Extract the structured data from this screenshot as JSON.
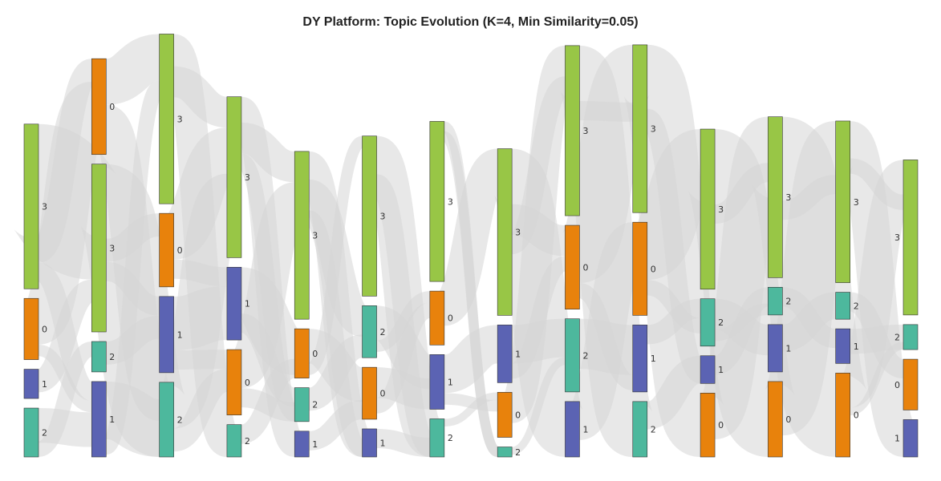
{
  "title": "DY Platform: Topic Evolution (K=4, Min Similarity=0.05)",
  "colors": {
    "0": "#e8820c",
    "1": "#5b63b3",
    "2": "#4db89d",
    "3": "#98c646",
    "link": "#d6d6d6",
    "node_stroke": "#333333"
  },
  "columns": [
    {
      "nodes": [
        {
          "label": "3",
          "topic": 3,
          "share": 0.428
        },
        {
          "label": "0",
          "topic": 0,
          "share": 0.159
        },
        {
          "label": "1",
          "topic": 1,
          "share": 0.076
        },
        {
          "label": "2",
          "topic": 2,
          "share": 0.127
        }
      ]
    },
    {
      "nodes": [
        {
          "label": "0",
          "topic": 0,
          "share": 0.249
        },
        {
          "label": "3",
          "topic": 3,
          "share": 0.436
        },
        {
          "label": "2",
          "topic": 2,
          "share": 0.079
        },
        {
          "label": "1",
          "topic": 1,
          "share": 0.196
        }
      ]
    },
    {
      "nodes": [
        {
          "label": "3",
          "topic": 3,
          "share": 0.441
        },
        {
          "label": "0",
          "topic": 0,
          "share": 0.191
        },
        {
          "label": "1",
          "topic": 1,
          "share": 0.198
        },
        {
          "label": "2",
          "topic": 2,
          "share": 0.194
        }
      ]
    },
    {
      "nodes": [
        {
          "label": "3",
          "topic": 3,
          "share": 0.418
        },
        {
          "label": "1",
          "topic": 1,
          "share": 0.189
        },
        {
          "label": "0",
          "topic": 0,
          "share": 0.17
        },
        {
          "label": "2",
          "topic": 2,
          "share": 0.084
        }
      ]
    },
    {
      "nodes": [
        {
          "label": "3",
          "topic": 3,
          "share": 0.436
        },
        {
          "label": "0",
          "topic": 0,
          "share": 0.128
        },
        {
          "label": "2",
          "topic": 2,
          "share": 0.088
        },
        {
          "label": "1",
          "topic": 1,
          "share": 0.067
        }
      ]
    },
    {
      "nodes": [
        {
          "label": "3",
          "topic": 3,
          "share": 0.416
        },
        {
          "label": "2",
          "topic": 2,
          "share": 0.135
        },
        {
          "label": "0",
          "topic": 0,
          "share": 0.135
        },
        {
          "label": "1",
          "topic": 1,
          "share": 0.073
        }
      ]
    },
    {
      "nodes": [
        {
          "label": "3",
          "topic": 3,
          "share": 0.416
        },
        {
          "label": "0",
          "topic": 0,
          "share": 0.14
        },
        {
          "label": "1",
          "topic": 1,
          "share": 0.142
        },
        {
          "label": "2",
          "topic": 2,
          "share": 0.099
        }
      ]
    },
    {
      "nodes": [
        {
          "label": "3",
          "topic": 3,
          "share": 0.433
        },
        {
          "label": "1",
          "topic": 1,
          "share": 0.15
        },
        {
          "label": "0",
          "topic": 0,
          "share": 0.117
        },
        {
          "label": "2",
          "topic": 2,
          "share": 0.026
        }
      ]
    },
    {
      "nodes": [
        {
          "label": "3",
          "topic": 3,
          "share": 0.442
        },
        {
          "label": "0",
          "topic": 0,
          "share": 0.218
        },
        {
          "label": "2",
          "topic": 2,
          "share": 0.19
        },
        {
          "label": "1",
          "topic": 1,
          "share": 0.144
        }
      ]
    },
    {
      "nodes": [
        {
          "label": "3",
          "topic": 3,
          "share": 0.436
        },
        {
          "label": "0",
          "topic": 0,
          "share": 0.242
        },
        {
          "label": "1",
          "topic": 1,
          "share": 0.174
        },
        {
          "label": "2",
          "topic": 2,
          "share": 0.144
        }
      ]
    },
    {
      "nodes": [
        {
          "label": "3",
          "topic": 3,
          "share": 0.416
        },
        {
          "label": "2",
          "topic": 2,
          "share": 0.123
        },
        {
          "label": "1",
          "topic": 1,
          "share": 0.072
        },
        {
          "label": "0",
          "topic": 0,
          "share": 0.166
        }
      ]
    },
    {
      "nodes": [
        {
          "label": "3",
          "topic": 3,
          "share": 0.418
        },
        {
          "label": "2",
          "topic": 2,
          "share": 0.072
        },
        {
          "label": "1",
          "topic": 1,
          "share": 0.123
        },
        {
          "label": "0",
          "topic": 0,
          "share": 0.196
        }
      ]
    },
    {
      "nodes": [
        {
          "label": "3",
          "topic": 3,
          "share": 0.42
        },
        {
          "label": "2",
          "topic": 2,
          "share": 0.07
        },
        {
          "label": "1",
          "topic": 1,
          "share": 0.09
        },
        {
          "label": "0",
          "topic": 0,
          "share": 0.218
        }
      ]
    },
    {
      "nodes": [
        {
          "label": "3",
          "topic": 3,
          "share": 0.403
        },
        {
          "label": "2",
          "topic": 2,
          "share": 0.065
        },
        {
          "label": "0",
          "topic": 0,
          "share": 0.132
        },
        {
          "label": "1",
          "topic": 1,
          "share": 0.097
        }
      ]
    }
  ],
  "links": [
    [
      0,
      0,
      1,
      1,
      0.3
    ],
    [
      0,
      0,
      2,
      0,
      0.06
    ],
    [
      0,
      0,
      0,
      3,
      0.05
    ],
    [
      0,
      1,
      1,
      0,
      0.12
    ],
    [
      0,
      1,
      2,
      3,
      0.03
    ],
    [
      0,
      2,
      3,
      1,
      0.06
    ],
    [
      0,
      3,
      1,
      3,
      0.09
    ],
    [
      0,
      3,
      3,
      2,
      0.04
    ],
    [
      1,
      0,
      0,
      0,
      0.12
    ],
    [
      1,
      0,
      1,
      3,
      0.1
    ],
    [
      1,
      1,
      0,
      3,
      0.3
    ],
    [
      1,
      1,
      2,
      1,
      0.06
    ],
    [
      1,
      1,
      3,
      2,
      0.05
    ],
    [
      1,
      2,
      2,
      2,
      0.06
    ],
    [
      1,
      3,
      3,
      3,
      0.15
    ],
    [
      1,
      3,
      1,
      0,
      0.04
    ],
    [
      2,
      0,
      0,
      3,
      0.3
    ],
    [
      2,
      0,
      2,
      0,
      0.08
    ],
    [
      2,
      1,
      1,
      0,
      0.12
    ],
    [
      2,
      1,
      0,
      1,
      0.05
    ],
    [
      2,
      2,
      3,
      1,
      0.14
    ],
    [
      2,
      2,
      1,
      2,
      0.05
    ],
    [
      2,
      3,
      3,
      0,
      0.12
    ],
    [
      2,
      3,
      2,
      2,
      0.06
    ],
    [
      3,
      0,
      0,
      3,
      0.3
    ],
    [
      3,
      0,
      1,
      0,
      0.08
    ],
    [
      3,
      1,
      3,
      1,
      0.12
    ],
    [
      3,
      1,
      0,
      2,
      0.05
    ],
    [
      3,
      2,
      2,
      0,
      0.1
    ],
    [
      3,
      2,
      3,
      2,
      0.05
    ],
    [
      3,
      3,
      1,
      1,
      0.05
    ],
    [
      3,
      0,
      2,
      2,
      0.04
    ],
    [
      4,
      0,
      0,
      3,
      0.3
    ],
    [
      4,
      0,
      1,
      1,
      0.08
    ],
    [
      4,
      1,
      2,
      2,
      0.09
    ],
    [
      4,
      1,
      0,
      0,
      0.03
    ],
    [
      4,
      2,
      1,
      1,
      0.06
    ],
    [
      4,
      3,
      3,
      2,
      0.05
    ],
    [
      4,
      0,
      2,
      3,
      0.04
    ],
    [
      5,
      0,
      0,
      3,
      0.3
    ],
    [
      5,
      1,
      1,
      2,
      0.09
    ],
    [
      5,
      1,
      3,
      1,
      0.03
    ],
    [
      5,
      2,
      0,
      2,
      0.08
    ],
    [
      5,
      2,
      2,
      1,
      0.04
    ],
    [
      5,
      3,
      3,
      3,
      0.05
    ],
    [
      5,
      0,
      1,
      3,
      0.05
    ],
    [
      6,
      0,
      0,
      3,
      0.3
    ],
    [
      6,
      1,
      2,
      0,
      0.09
    ],
    [
      6,
      2,
      1,
      1,
      0.1
    ],
    [
      6,
      3,
      3,
      2,
      0.02
    ],
    [
      6,
      0,
      2,
      3,
      0.05
    ],
    [
      6,
      2,
      3,
      2,
      0.03
    ],
    [
      7,
      0,
      0,
      3,
      0.3
    ],
    [
      7,
      0,
      1,
      1,
      0.08
    ],
    [
      7,
      1,
      2,
      2,
      0.1
    ],
    [
      7,
      1,
      3,
      1,
      0.04
    ],
    [
      7,
      2,
      1,
      0,
      0.08
    ],
    [
      7,
      3,
      3,
      2,
      0.02
    ],
    [
      7,
      0,
      2,
      0,
      0.05
    ],
    [
      8,
      0,
      0,
      3,
      0.3
    ],
    [
      8,
      1,
      1,
      0,
      0.15
    ],
    [
      8,
      2,
      3,
      2,
      0.13
    ],
    [
      8,
      3,
      2,
      1,
      0.1
    ],
    [
      8,
      0,
      1,
      0,
      0.05
    ],
    [
      8,
      1,
      3,
      2,
      0.04
    ],
    [
      9,
      0,
      0,
      3,
      0.3
    ],
    [
      9,
      1,
      3,
      0,
      0.15
    ],
    [
      9,
      2,
      2,
      1,
      0.05
    ],
    [
      9,
      3,
      1,
      2,
      0.1
    ],
    [
      9,
      1,
      2,
      1,
      0.04
    ],
    [
      9,
      0,
      1,
      2,
      0.05
    ],
    [
      10,
      0,
      0,
      3,
      0.3
    ],
    [
      10,
      1,
      1,
      2,
      0.08
    ],
    [
      10,
      2,
      2,
      1,
      0.05
    ],
    [
      10,
      3,
      3,
      0,
      0.12
    ],
    [
      10,
      1,
      2,
      1,
      0.03
    ],
    [
      10,
      0,
      3,
      0,
      0.05
    ],
    [
      11,
      0,
      0,
      3,
      0.3
    ],
    [
      11,
      1,
      1,
      2,
      0.05
    ],
    [
      11,
      2,
      2,
      1,
      0.09
    ],
    [
      11,
      3,
      3,
      0,
      0.14
    ],
    [
      11,
      0,
      3,
      0,
      0.05
    ],
    [
      12,
      0,
      0,
      3,
      0.3
    ],
    [
      12,
      1,
      1,
      2,
      0.05
    ],
    [
      12,
      2,
      3,
      1,
      0.07
    ],
    [
      12,
      3,
      2,
      0,
      0.09
    ],
    [
      12,
      3,
      3,
      1,
      0.02
    ],
    [
      12,
      0,
      2,
      0,
      0.04
    ]
  ]
}
